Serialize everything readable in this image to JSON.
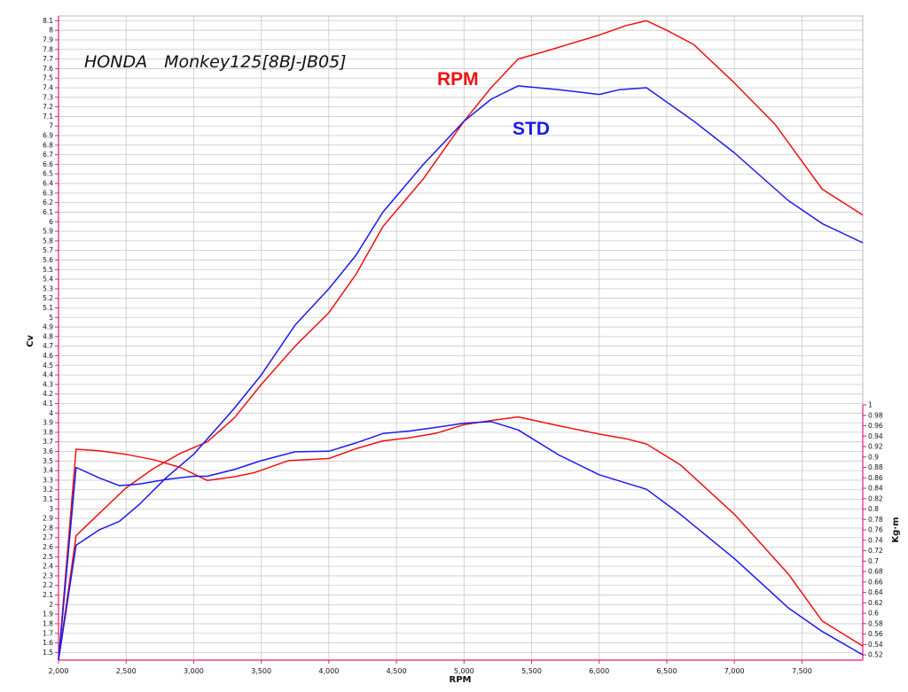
{
  "chart_data": {
    "type": "line",
    "title": "HONDA　Monkey125[8BJ-JB05]",
    "xlabel": "RPM",
    "ylabel_left": "Cv",
    "ylabel_right": "Kg·m",
    "xlim": [
      2000,
      7950
    ],
    "ylim_left": [
      1.42,
      8.15
    ],
    "ylim_right": [
      0.51,
      1.0
    ],
    "grid": true,
    "x_ticks": [
      "2,000",
      "2,500",
      "3,000",
      "3,500",
      "4,000",
      "4,500",
      "5,000",
      "5,500",
      "6,000",
      "6,500",
      "7,000",
      "7,500"
    ],
    "y_left_ticks": [
      "1.5",
      "1.6",
      "1.7",
      "1.8",
      "1.9",
      "2",
      "2.1",
      "2.2",
      "2.3",
      "2.4",
      "2.5",
      "2.6",
      "2.7",
      "2.8",
      "2.9",
      "3",
      "3.1",
      "3.2",
      "3.3",
      "3.4",
      "3.5",
      "3.6",
      "3.7",
      "3.8",
      "3.9",
      "4",
      "4.1",
      "4.2",
      "4.3",
      "4.4",
      "4.5",
      "4.6",
      "4.7",
      "4.8",
      "4.9",
      "5",
      "5.1",
      "5.2",
      "5.3",
      "5.4",
      "5.5",
      "5.6",
      "5.7",
      "5.8",
      "5.9",
      "6",
      "6.1",
      "6.2",
      "6.3",
      "6.4",
      "6.5",
      "6.6",
      "6.7",
      "6.8",
      "6.9",
      "7",
      "7.1",
      "7.2",
      "7.3",
      "7.4",
      "7.5",
      "7.6",
      "7.7",
      "7.8",
      "7.9",
      "8",
      "8.1"
    ],
    "y_right_ticks": [
      "0.52",
      "0.54",
      "0.56",
      "0.58",
      "0.6",
      "0.62",
      "0.64",
      "0.66",
      "0.68",
      "0.7",
      "0.72",
      "0.74",
      "0.76",
      "0.78",
      "0.8",
      "0.82",
      "0.84",
      "0.86",
      "0.88",
      "0.9",
      "0.92",
      "0.94",
      "0.96",
      "0.98",
      "1"
    ],
    "series": [
      {
        "name": "RPM",
        "quantity": "power",
        "axis": "left",
        "color": "#ee1111",
        "x": [
          2000,
          2130,
          2300,
          2500,
          2700,
          2900,
          3100,
          3300,
          3500,
          3750,
          4000,
          4200,
          4400,
          4700,
          5000,
          5200,
          5400,
          5600,
          6000,
          6200,
          6350,
          6500,
          6700,
          7000,
          7300,
          7650,
          7950
        ],
        "values": [
          1.42,
          2.72,
          2.95,
          3.22,
          3.42,
          3.58,
          3.7,
          3.95,
          4.3,
          4.7,
          5.05,
          5.45,
          5.95,
          6.45,
          7.05,
          7.4,
          7.7,
          7.78,
          7.95,
          8.05,
          8.1,
          8.0,
          7.85,
          7.45,
          7.02,
          6.34,
          6.07
        ]
      },
      {
        "name": "STD",
        "quantity": "power",
        "axis": "left",
        "color": "#1a1aee",
        "x": [
          2000,
          2130,
          2300,
          2450,
          2600,
          2800,
          3000,
          3100,
          3300,
          3500,
          3750,
          4000,
          4200,
          4400,
          4700,
          5000,
          5200,
          5400,
          5700,
          6000,
          6150,
          6350,
          6700,
          7000,
          7400,
          7650,
          7950
        ],
        "values": [
          1.42,
          2.62,
          2.78,
          2.87,
          3.05,
          3.33,
          3.57,
          3.73,
          4.05,
          4.4,
          4.92,
          5.3,
          5.65,
          6.1,
          6.6,
          7.05,
          7.28,
          7.42,
          7.38,
          7.33,
          7.38,
          7.4,
          7.05,
          6.72,
          6.22,
          5.98,
          5.78
        ]
      },
      {
        "name": "RPM",
        "quantity": "torque",
        "axis": "right",
        "color": "#ee1111",
        "x": [
          2000,
          2130,
          2300,
          2500,
          2700,
          2900,
          3100,
          3300,
          3450,
          3700,
          4000,
          4200,
          4400,
          4600,
          4800,
          5000,
          5200,
          5400,
          5700,
          6000,
          6200,
          6350,
          6600,
          7000,
          7400,
          7650,
          7950
        ],
        "values": [
          0.51,
          0.915,
          0.912,
          0.905,
          0.895,
          0.88,
          0.855,
          0.862,
          0.87,
          0.893,
          0.897,
          0.916,
          0.931,
          0.937,
          0.946,
          0.962,
          0.97,
          0.977,
          0.96,
          0.944,
          0.935,
          0.925,
          0.885,
          0.79,
          0.675,
          0.585,
          0.537
        ]
      },
      {
        "name": "STD",
        "quantity": "torque",
        "axis": "right",
        "color": "#1a1aee",
        "x": [
          2000,
          2130,
          2300,
          2450,
          2600,
          2800,
          3000,
          3100,
          3300,
          3500,
          3750,
          4000,
          4200,
          4400,
          4600,
          4800,
          5000,
          5200,
          5400,
          5700,
          6000,
          6200,
          6350,
          6600,
          7000,
          7400,
          7650,
          7950
        ],
        "values": [
          0.51,
          0.88,
          0.86,
          0.845,
          0.848,
          0.857,
          0.863,
          0.863,
          0.876,
          0.893,
          0.91,
          0.911,
          0.927,
          0.945,
          0.95,
          0.957,
          0.965,
          0.968,
          0.952,
          0.904,
          0.866,
          0.85,
          0.838,
          0.79,
          0.705,
          0.61,
          0.565,
          0.52
        ]
      }
    ],
    "legend": [
      {
        "label": "RPM",
        "color": "#ee1111",
        "placement": "top-center"
      },
      {
        "label": "STD",
        "color": "#1a1aee",
        "placement": "top-center"
      }
    ]
  }
}
